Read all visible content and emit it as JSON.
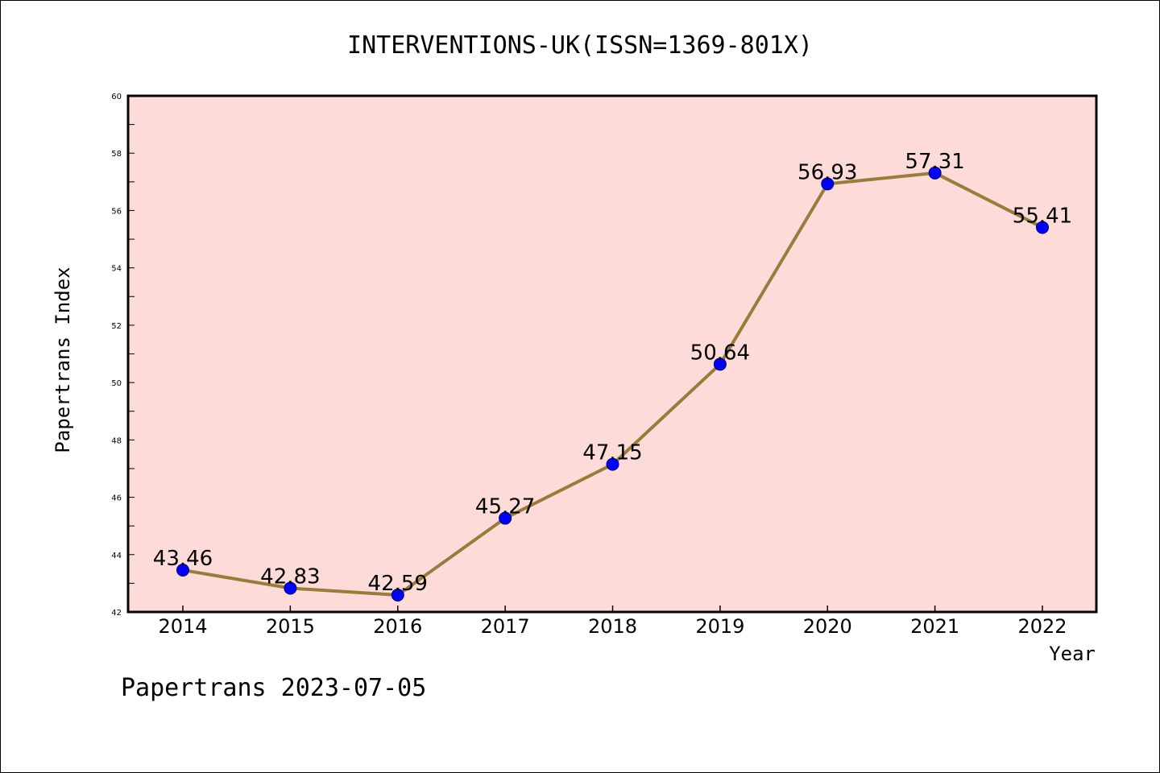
{
  "chart_data": {
    "type": "line",
    "title": "INTERVENTIONS-UK(ISSN=1369-801X)",
    "xlabel": "Year",
    "ylabel": "Papertrans Index",
    "categories": [
      "2014",
      "2015",
      "2016",
      "2017",
      "2018",
      "2019",
      "2020",
      "2021",
      "2022"
    ],
    "series": [
      {
        "name": "Papertrans Index",
        "values": [
          43.46,
          42.83,
          42.59,
          45.27,
          47.15,
          50.64,
          56.93,
          57.31,
          55.41
        ],
        "labels": [
          "43.46",
          "42.83",
          "42.59",
          "45.27",
          "47.15",
          "50.64",
          "56.93",
          "57.31",
          "55.41"
        ]
      }
    ],
    "ylim": [
      42,
      60
    ],
    "yticks": [
      "42",
      "44",
      "46",
      "48",
      "50",
      "52",
      "54",
      "56",
      "58",
      "60"
    ],
    "grid": false,
    "legend": "none"
  },
  "footer": {
    "text": "Papertrans 2023-07-05"
  },
  "colors": {
    "plot_background": "#FDDBD8",
    "line": "#9A7B3A",
    "marker": "#0000FF",
    "axis": "#000000"
  }
}
